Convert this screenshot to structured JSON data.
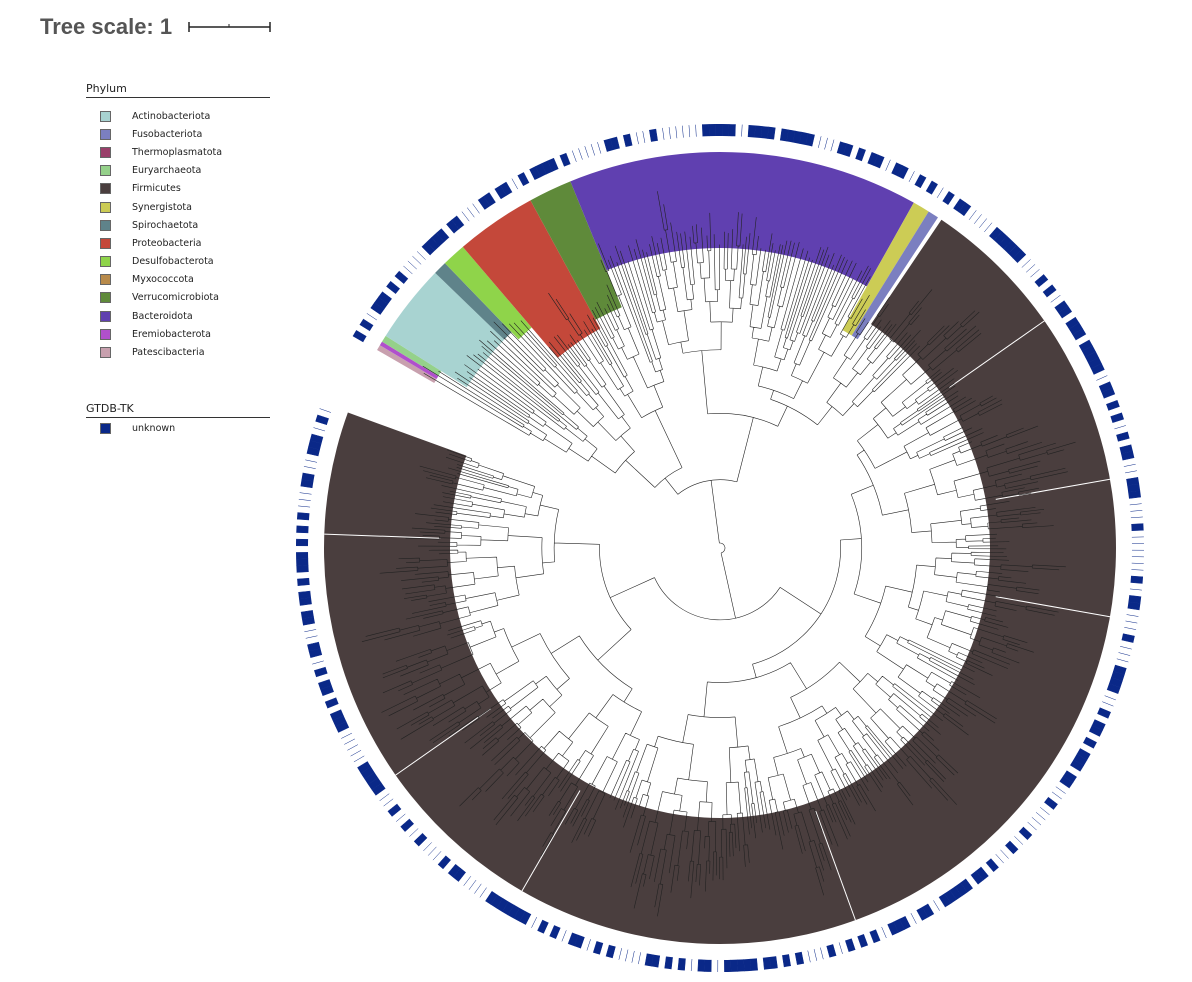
{
  "scale": {
    "title": "Tree scale: 1"
  },
  "legend_phylum": {
    "title": "Phylum",
    "items": [
      {
        "label": "Actinobacteriota",
        "color": "#a8d3d1"
      },
      {
        "label": "Fusobacteriota",
        "color": "#7b7fc0"
      },
      {
        "label": "Thermoplasmatota",
        "color": "#9a3f6a"
      },
      {
        "label": "Euryarchaeota",
        "color": "#95d18a"
      },
      {
        "label": "Firmicutes",
        "color": "#4a3e3e"
      },
      {
        "label": "Synergistota",
        "color": "#cccc55"
      },
      {
        "label": "Spirochaetota",
        "color": "#5f838a"
      },
      {
        "label": "Proteobacteria",
        "color": "#c4483a"
      },
      {
        "label": "Desulfobacterota",
        "color": "#8fd44a"
      },
      {
        "label": "Myxococcota",
        "color": "#b88a4a"
      },
      {
        "label": "Verrucomicrobiota",
        "color": "#5f8a3a"
      },
      {
        "label": "Bacteroidota",
        "color": "#6040b0"
      },
      {
        "label": "Eremiobacterota",
        "color": "#b050cc"
      },
      {
        "label": "Patescibacteria",
        "color": "#c8a0ae"
      }
    ]
  },
  "legend_gtdb": {
    "title": "GTDB-TK",
    "items": [
      {
        "label": "unknown",
        "color": "#0a2888"
      }
    ]
  }
}
